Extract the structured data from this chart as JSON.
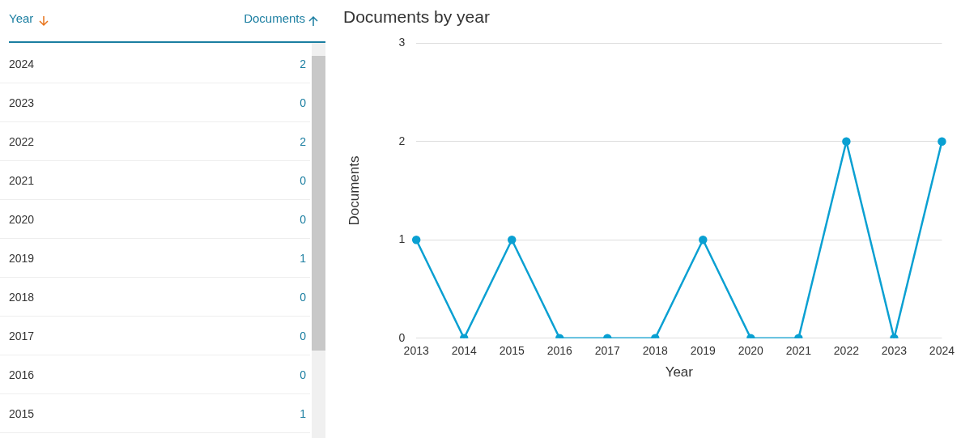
{
  "chart_data": {
    "type": "line",
    "title": "Documents by year",
    "xlabel": "Year",
    "ylabel": "Documents",
    "categories": [
      "2013",
      "2014",
      "2015",
      "2016",
      "2017",
      "2018",
      "2019",
      "2020",
      "2021",
      "2022",
      "2023",
      "2024"
    ],
    "series": [
      {
        "color": "#0aa0d2",
        "values": [
          1,
          0,
          1,
          0,
          0,
          0,
          1,
          0,
          0,
          2,
          0,
          2
        ]
      }
    ],
    "value_labels": [
      null,
      null,
      "1",
      "0",
      "0",
      "0",
      "1",
      "0",
      "0",
      "2",
      "0",
      "2"
    ],
    "ylim": [
      0,
      3
    ],
    "yticks": [
      0,
      1,
      2,
      3
    ],
    "grid": "y",
    "marker": "circle",
    "line_style": "solid"
  }
}
